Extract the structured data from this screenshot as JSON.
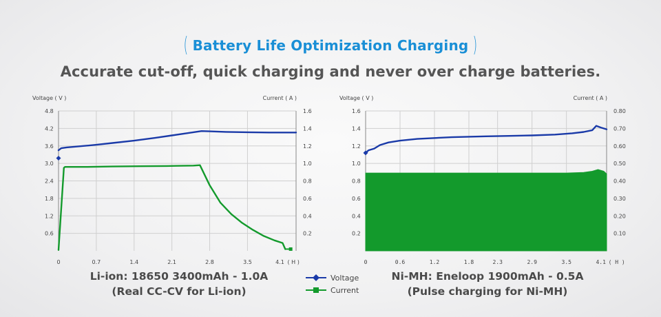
{
  "header": {
    "bracket_open": "(",
    "bracket_close": ")",
    "title": "Battery Life Optimization Charging",
    "subtitle": "Accurate cut-off, quick charging and never over charge batteries."
  },
  "legend": {
    "voltage": "Voltage",
    "current": "Current"
  },
  "colors": {
    "voltage": "#1a3aa8",
    "current": "#139a2c",
    "grid": "#cfcfcf",
    "axis": "#888888"
  },
  "chart_data": [
    {
      "type": "line",
      "title": "Li-ion: 18650 3400mAh - 1.0A",
      "subtitle": "(Real CC-CV for Li-ion)",
      "ylabel": "Voltage ( V )",
      "y2label": "Current ( A )",
      "xunit": "( H )",
      "xlim": [
        0,
        4.4
      ],
      "ylim": [
        0,
        4.8
      ],
      "y2lim": [
        0,
        1.6
      ],
      "x_ticks": [
        0,
        0.7,
        1.4,
        2.1,
        2.8,
        3.5,
        4.1
      ],
      "x_tick_labels": [
        "0",
        "0.7",
        "1.4",
        "2.1",
        "2.8",
        "3.5",
        "4.1"
      ],
      "y_ticks": [
        0.6,
        1.2,
        1.8,
        2.4,
        3.0,
        3.6,
        4.2,
        4.8
      ],
      "y_tick_labels": [
        "0.6",
        "1.2",
        "1.8",
        "2.4",
        "3.0",
        "3.6",
        "4.2",
        "4.8"
      ],
      "y2_ticks": [
        0.2,
        0.4,
        0.6,
        0.8,
        1.0,
        1.2,
        1.4,
        1.6
      ],
      "y2_tick_labels": [
        "0.2",
        "0.4",
        "0.6",
        "0.8",
        "1.0",
        "1.2",
        "1.4",
        "1.6"
      ],
      "x_grid": [
        0.7,
        1.4,
        2.1,
        2.8,
        3.5
      ],
      "series": [
        {
          "name": "Voltage",
          "axis": "left",
          "x": [
            0.0,
            0.05,
            0.15,
            0.35,
            0.7,
            1.0,
            1.4,
            1.8,
            2.1,
            2.4,
            2.65,
            2.8,
            3.1,
            3.5,
            3.9,
            4.4
          ],
          "y": [
            3.45,
            3.52,
            3.55,
            3.58,
            3.64,
            3.7,
            3.78,
            3.88,
            3.96,
            4.04,
            4.11,
            4.1,
            4.08,
            4.07,
            4.06,
            4.06
          ],
          "start_marker": {
            "x": 0.0,
            "y": 3.18
          }
        },
        {
          "name": "Current",
          "axis": "right",
          "x": [
            0.0,
            0.1,
            0.12,
            0.5,
            1.0,
            1.5,
            2.0,
            2.5,
            2.62,
            2.8,
            3.0,
            3.2,
            3.4,
            3.6,
            3.8,
            4.0,
            4.15,
            4.2
          ],
          "y": [
            0.01,
            0.95,
            0.96,
            0.96,
            0.965,
            0.968,
            0.97,
            0.975,
            0.98,
            0.75,
            0.55,
            0.42,
            0.32,
            0.24,
            0.17,
            0.12,
            0.09,
            0.02
          ],
          "end_marker": {
            "x": 4.3,
            "y": 0.02
          }
        }
      ]
    },
    {
      "type": "area",
      "title": "Ni-MH: Eneloop 1900mAh - 0.5A",
      "subtitle": "(Pulse charging for Ni-MH)",
      "ylabel": "Voltage ( V )",
      "y2label": "Current ( A )",
      "xunit": "( H )",
      "xlim": [
        0,
        4.2
      ],
      "ylim": [
        0,
        1.6
      ],
      "y2lim": [
        0,
        0.8
      ],
      "x_ticks": [
        0,
        0.6,
        1.2,
        1.8,
        2.3,
        2.9,
        3.5,
        4.1
      ],
      "x_tick_labels": [
        "0",
        "0.6",
        "1.2",
        "1.8",
        "2.3",
        "2.9",
        "3.5",
        "4.1"
      ],
      "y_ticks": [
        0.2,
        0.4,
        0.6,
        0.8,
        1.0,
        1.2,
        1.4,
        1.6
      ],
      "y_tick_labels": [
        "0.2",
        "0.4",
        "0.6",
        "0.8",
        "1.0",
        "1.2",
        "1.4",
        "1.6"
      ],
      "y2_ticks": [
        0.1,
        0.2,
        0.3,
        0.4,
        0.5,
        0.6,
        0.7,
        0.8
      ],
      "y2_tick_labels": [
        "0.10",
        "0.20",
        "0.30",
        "0.40",
        "0.50",
        "0.60",
        "0.70",
        "0.80"
      ],
      "x_grid": [
        0.6,
        1.2,
        1.8,
        2.3,
        2.9,
        3.5
      ],
      "series": [
        {
          "name": "Voltage",
          "axis": "left",
          "x": [
            0.0,
            0.05,
            0.15,
            0.25,
            0.4,
            0.6,
            0.9,
            1.2,
            1.5,
            1.8,
            2.1,
            2.5,
            2.9,
            3.3,
            3.6,
            3.8,
            3.95,
            4.02,
            4.1,
            4.2
          ],
          "y": [
            1.12,
            1.15,
            1.17,
            1.21,
            1.24,
            1.26,
            1.28,
            1.29,
            1.3,
            1.305,
            1.31,
            1.315,
            1.32,
            1.33,
            1.345,
            1.36,
            1.38,
            1.43,
            1.41,
            1.39
          ],
          "start_marker": {
            "x": 0.0,
            "y": 1.12
          }
        },
        {
          "name": "Current",
          "axis": "right",
          "fill": true,
          "x": [
            0.0,
            3.5,
            3.8,
            3.95,
            4.05,
            4.15,
            4.2
          ],
          "y": [
            0.445,
            0.445,
            0.448,
            0.455,
            0.465,
            0.455,
            0.44
          ]
        }
      ]
    }
  ]
}
